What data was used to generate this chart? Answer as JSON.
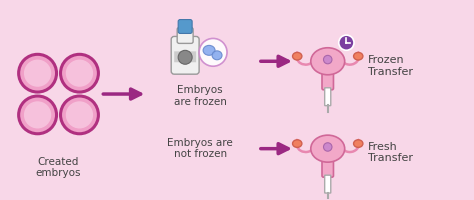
{
  "background_color": "#f8d7e8",
  "embryo_fill": "#f0a0c8",
  "embryo_border": "#b03080",
  "embryo_inner_fill": "#f8c8e0",
  "arrow_color": "#9b2882",
  "text_color": "#444444",
  "label_created": "Created\nembryos",
  "label_frozen": "Embryos\nare frozen",
  "label_not_frozen": "Embryos are\nnot frozen",
  "label_frozen_transfer": "Frozen\nTransfer",
  "label_fresh_transfer": "Fresh\nTransfer",
  "uterus_body_color": "#f2a8c8",
  "uterus_tube_color": "#e888b0",
  "uterus_border": "#d06898",
  "ovary_color": "#f08060",
  "ovary_border": "#d06050",
  "inner_dot_color": "#cc88cc",
  "clock_color": "#7b3fa0",
  "needle_color": "#cccccc",
  "needle_border": "#aaaaaa",
  "bottle_body": "#e8e8e8",
  "bottle_cap": "#5599cc",
  "bottle_band": "#888888",
  "frozen_embryo_color": "#88aaee",
  "frozen_embryo_border": "#6688cc"
}
